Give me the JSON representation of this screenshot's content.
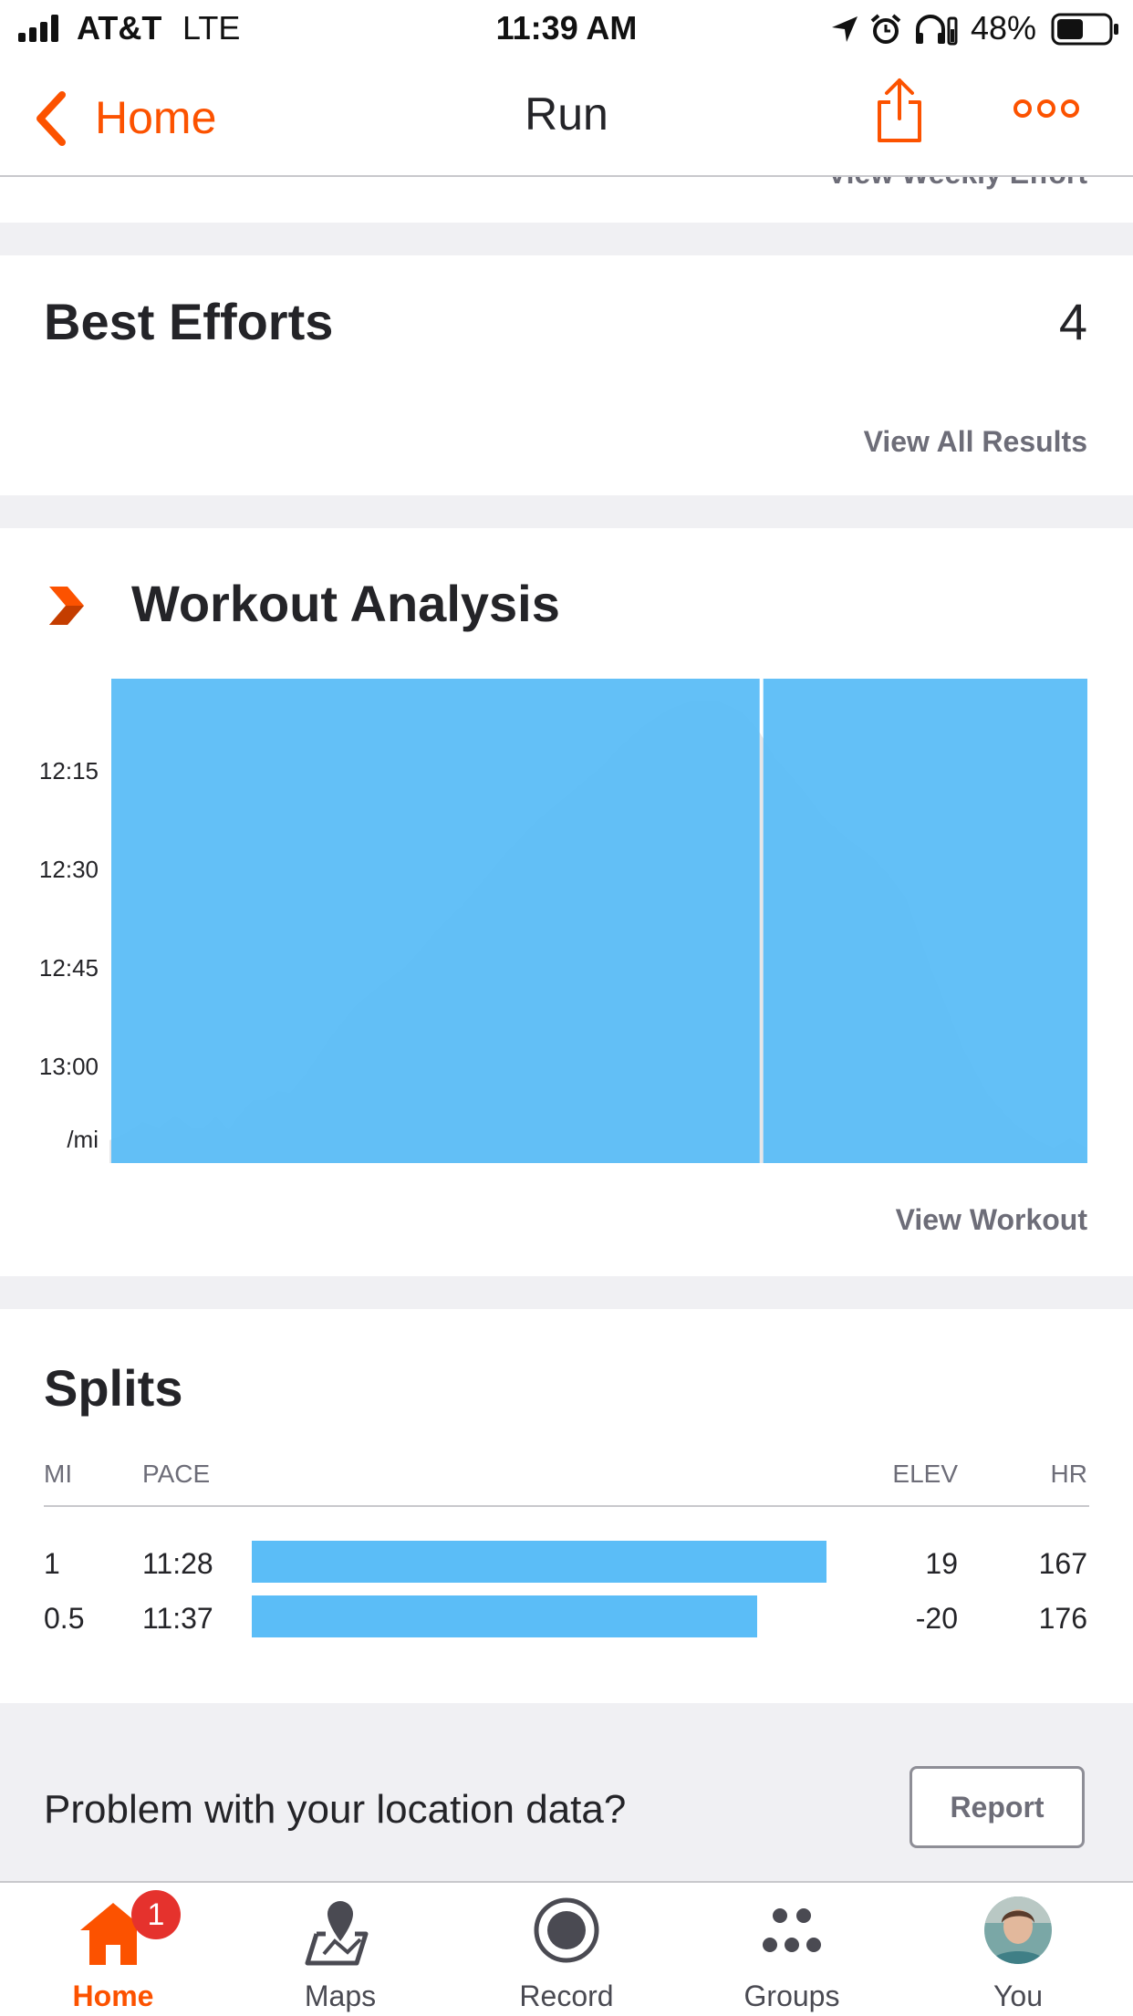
{
  "status_bar": {
    "carrier": "AT&T",
    "network": "LTE",
    "time": "11:39 AM",
    "battery": "48%"
  },
  "nav": {
    "back_label": "Home",
    "title": "Run"
  },
  "partial_link": "View Weekly Effort",
  "best_efforts": {
    "title": "Best Efforts",
    "count": "4",
    "link": "View All Results"
  },
  "workout_analysis": {
    "title": "Workout Analysis",
    "link": "View Workout"
  },
  "chart_data": {
    "type": "bar",
    "y_axis_ticks": [
      "12:15",
      "12:30",
      "12:45",
      "13:00"
    ],
    "y_axis_unit": "/mi",
    "y_axis_reversed": true,
    "bar_color": "#5bbdf7",
    "bars": [
      {
        "split": 1,
        "distance_mi": 1.0,
        "pace": "11:28"
      },
      {
        "split": 2,
        "distance_mi": 0.5,
        "pace": "11:37"
      }
    ],
    "elevation_profile_color": "#e6e6e8"
  },
  "splits": {
    "title": "Splits",
    "headers": {
      "mi": "MI",
      "pace": "PACE",
      "elev": "ELEV",
      "hr": "HR"
    },
    "rows": [
      {
        "mi": "1",
        "pace": "11:28",
        "elev": "19",
        "hr": "167",
        "bar_fraction": 1.0
      },
      {
        "mi": "0.5",
        "pace": "11:37",
        "elev": "-20",
        "hr": "176",
        "bar_fraction": 0.88
      }
    ]
  },
  "report": {
    "question": "Problem with your location data?",
    "button": "Report"
  },
  "tabs": [
    {
      "label": "Home",
      "icon": "home-icon",
      "active": true,
      "badge": "1"
    },
    {
      "label": "Maps",
      "icon": "map-icon",
      "active": false
    },
    {
      "label": "Record",
      "icon": "record-icon",
      "active": false
    },
    {
      "label": "Groups",
      "icon": "groups-icon",
      "active": false
    },
    {
      "label": "You",
      "icon": "avatar",
      "active": false
    }
  ],
  "colors": {
    "accent": "#fc5200",
    "bar_blue": "#5bbdf7",
    "badge_red": "#e5322d"
  }
}
